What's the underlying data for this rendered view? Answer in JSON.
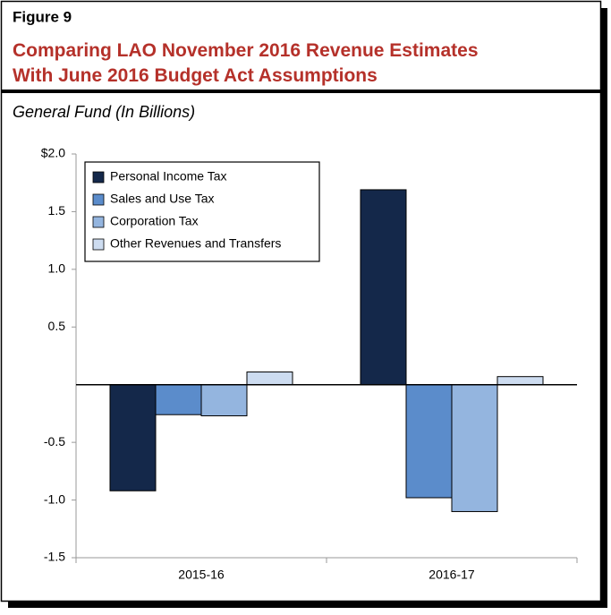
{
  "chart_data": {
    "type": "bar",
    "figure_label": "Figure 9",
    "title": "Comparing LAO November 2016 Revenue Estimates With June 2016 Budget Act Assumptions",
    "subtitle": "General Fund (In Billions)",
    "categories": [
      "2015-16",
      "2016-17"
    ],
    "series": [
      {
        "name": "Personal Income Tax",
        "color": "#14284a",
        "values": [
          -0.92,
          1.69
        ]
      },
      {
        "name": "Sales and Use Tax",
        "color": "#5b8ccb",
        "values": [
          -0.26,
          -0.98
        ]
      },
      {
        "name": "Corporation Tax",
        "color": "#94b5df",
        "values": [
          -0.27,
          -1.1
        ]
      },
      {
        "name": "Other Revenues and Transfers",
        "color": "#cddcf0",
        "values": [
          0.11,
          0.07
        ]
      }
    ],
    "ylim": [
      -1.5,
      2.0
    ],
    "yticks": [
      {
        "value": 2.0,
        "label": "$2.0"
      },
      1.5,
      {
        "value": 1.0,
        "label": "1.0"
      },
      0.5,
      -0.5,
      {
        "value": -1.0,
        "label": "-1.0"
      },
      -1.5
    ],
    "legend": "upper left",
    "grid": false
  }
}
